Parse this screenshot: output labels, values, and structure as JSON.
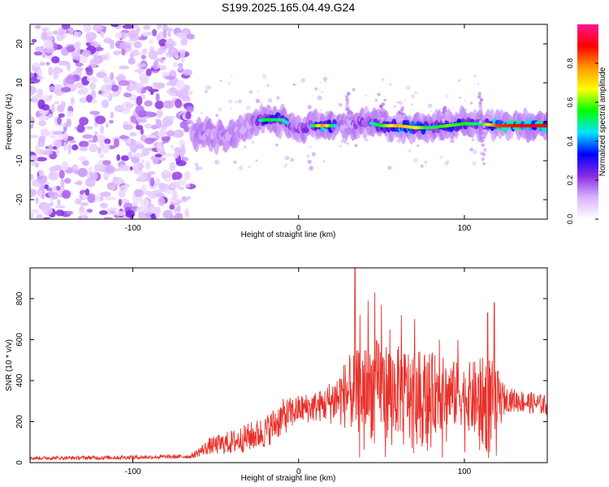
{
  "figure": {
    "title": "S199.2025.165.04.49.G24"
  },
  "chart_data": [
    {
      "type": "heatmap",
      "xlabel": "Height of straight line (km)",
      "ylabel": "Frequency (Hz)",
      "xlim": [
        -162,
        150
      ],
      "ylim": [
        -25,
        25
      ],
      "xticks": [
        -100,
        0,
        100
      ],
      "yticks": [
        -20,
        -10,
        0,
        10,
        20
      ],
      "colorbar": {
        "label": "Normalized spectral amplitude",
        "range": [
          0,
          1
        ],
        "ticks": [
          0.0,
          0.2,
          0.4,
          0.6,
          0.8
        ],
        "colors": [
          "#ffffff",
          "#d9b3ff",
          "#8a2be2",
          "#0000ff",
          "#00e5ff",
          "#00ff00",
          "#ffff00",
          "#ff9900",
          "#ff0000",
          "#ff1493"
        ]
      },
      "noise_region": {
        "x_range": [
          -162,
          -65
        ],
        "level": 0.15
      },
      "signal_band": {
        "description_hidden": true,
        "track": [
          {
            "x": -64,
            "y": -4,
            "amp": 0.35
          },
          {
            "x": -55,
            "y": -3,
            "amp": 0.3
          },
          {
            "x": -45,
            "y": -4,
            "amp": 0.28
          },
          {
            "x": -35,
            "y": -2,
            "amp": 0.25
          },
          {
            "x": -28,
            "y": 0,
            "amp": 0.3
          },
          {
            "x": -20,
            "y": 0.5,
            "amp": 0.55
          },
          {
            "x": -10,
            "y": 0.5,
            "amp": 0.5
          },
          {
            "x": 0,
            "y": -2,
            "amp": 0.35
          },
          {
            "x": 8,
            "y": -1,
            "amp": 0.45
          },
          {
            "x": 15,
            "y": -1,
            "amp": 0.8
          },
          {
            "x": 25,
            "y": -1,
            "amp": 0.3
          },
          {
            "x": 40,
            "y": 0,
            "amp": 0.4
          },
          {
            "x": 50,
            "y": -1,
            "amp": 0.55
          },
          {
            "x": 60,
            "y": -1,
            "amp": 0.75
          },
          {
            "x": 70,
            "y": -1.5,
            "amp": 0.7
          },
          {
            "x": 80,
            "y": -1.5,
            "amp": 0.5
          },
          {
            "x": 90,
            "y": -1,
            "amp": 0.6
          },
          {
            "x": 100,
            "y": -0.5,
            "amp": 0.55
          },
          {
            "x": 110,
            "y": -0.5,
            "amp": 0.5
          },
          {
            "x": 120,
            "y": -1,
            "amp": 0.85
          },
          {
            "x": 135,
            "y": -1,
            "amp": 0.9
          },
          {
            "x": 150,
            "y": -1,
            "amp": 0.9
          }
        ]
      }
    },
    {
      "type": "line",
      "xlabel": "Height of straight line (km)",
      "ylabel": "SNR (10 * v/v)",
      "xlim": [
        -162,
        150
      ],
      "ylim": [
        0,
        950
      ],
      "xticks": [
        -100,
        0,
        100
      ],
      "yticks": [
        0,
        200,
        400,
        600,
        800
      ],
      "series": [
        {
          "color": "#e8312a",
          "envelope": [
            {
              "x": -162,
              "mean": 22,
              "spread": 8
            },
            {
              "x": -110,
              "mean": 25,
              "spread": 10
            },
            {
              "x": -65,
              "mean": 30,
              "spread": 10
            },
            {
              "x": -54,
              "mean": 80,
              "spread": 40
            },
            {
              "x": -40,
              "mean": 100,
              "spread": 60
            },
            {
              "x": -20,
              "mean": 150,
              "spread": 80
            },
            {
              "x": -10,
              "mean": 220,
              "spread": 90
            },
            {
              "x": 0,
              "mean": 260,
              "spread": 70
            },
            {
              "x": 15,
              "mean": 280,
              "spread": 80
            },
            {
              "x": 30,
              "mean": 340,
              "spread": 180
            },
            {
              "x": 45,
              "mean": 360,
              "spread": 250
            },
            {
              "x": 60,
              "mean": 350,
              "spread": 220
            },
            {
              "x": 80,
              "mean": 340,
              "spread": 200
            },
            {
              "x": 100,
              "mean": 330,
              "spread": 150
            },
            {
              "x": 115,
              "mean": 280,
              "spread": 250
            },
            {
              "x": 125,
              "mean": 310,
              "spread": 60
            },
            {
              "x": 150,
              "mean": 280,
              "spread": 50
            }
          ],
          "spikes": [
            {
              "x": 34,
              "y": 950
            },
            {
              "x": 37,
              "y": 720
            },
            {
              "x": 42,
              "y": 790
            },
            {
              "x": 46,
              "y": 830
            },
            {
              "x": 50,
              "y": 770
            },
            {
              "x": 55,
              "y": 650
            },
            {
              "x": 62,
              "y": 720
            },
            {
              "x": 70,
              "y": 700
            },
            {
              "x": 85,
              "y": 600
            },
            {
              "x": 96,
              "y": 600
            },
            {
              "x": 114,
              "y": 730
            },
            {
              "x": 118,
              "y": 780
            }
          ]
        }
      ]
    }
  ]
}
